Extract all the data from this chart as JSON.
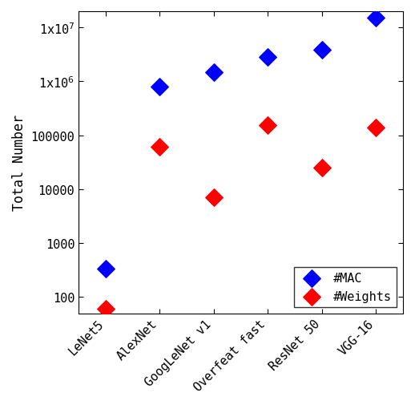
{
  "categories": [
    "LeNet5",
    "AlexNet",
    "GoogLeNet v1",
    "Overfeat fast",
    "ResNet 50",
    "VGG-16"
  ],
  "mac_values": [
    341,
    800000,
    1500000,
    2800000,
    3900000,
    15300000
  ],
  "weight_values": [
    60,
    61000,
    7000,
    154000,
    25500,
    138000
  ],
  "mac_color": "#0000FF",
  "weight_color": "#FF0000",
  "ylabel": "Total Number",
  "ylim_min": 50,
  "ylim_max": 20000000.0,
  "legend_mac": "#MAC",
  "legend_weights": "#Weights",
  "marker": "D",
  "marker_size": 10,
  "font_family": "monospace",
  "yticks": [
    100,
    1000,
    10000,
    100000,
    1000000,
    10000000
  ],
  "ytick_labels": [
    "100",
    "1000",
    "10000",
    "100000",
    "1x10$^6$",
    "1x10$^7$"
  ]
}
